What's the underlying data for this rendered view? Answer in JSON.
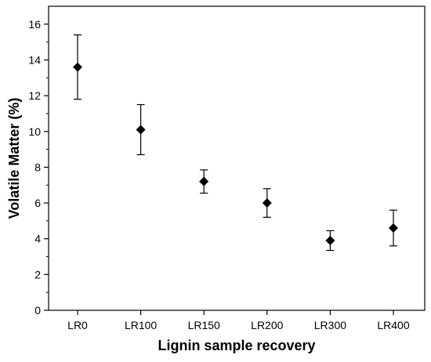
{
  "chart_data": {
    "type": "scatter",
    "title": "",
    "xlabel": "Lignin sample recovery",
    "ylabel": "Volatile Matter (%)",
    "categories": [
      "LR0",
      "LR100",
      "LR150",
      "LR200",
      "LR300",
      "LR400"
    ],
    "series": [
      {
        "values": [
          13.6,
          10.1,
          7.2,
          6.0,
          3.9,
          4.6
        ],
        "error_plus": [
          1.8,
          1.4,
          0.65,
          0.8,
          0.55,
          1.0
        ],
        "error_minus": [
          1.8,
          1.4,
          0.65,
          0.8,
          0.55,
          1.0
        ],
        "marker": "diamond",
        "color": "#000000"
      }
    ],
    "ylim": [
      0,
      17
    ],
    "yticks": [
      0,
      2,
      4,
      6,
      8,
      10,
      12,
      14,
      16
    ],
    "ytick_labels": [
      "0",
      "2",
      "4",
      "6",
      "8",
      "10",
      "12",
      "14",
      "16"
    ],
    "grid": false,
    "legend": "none"
  }
}
